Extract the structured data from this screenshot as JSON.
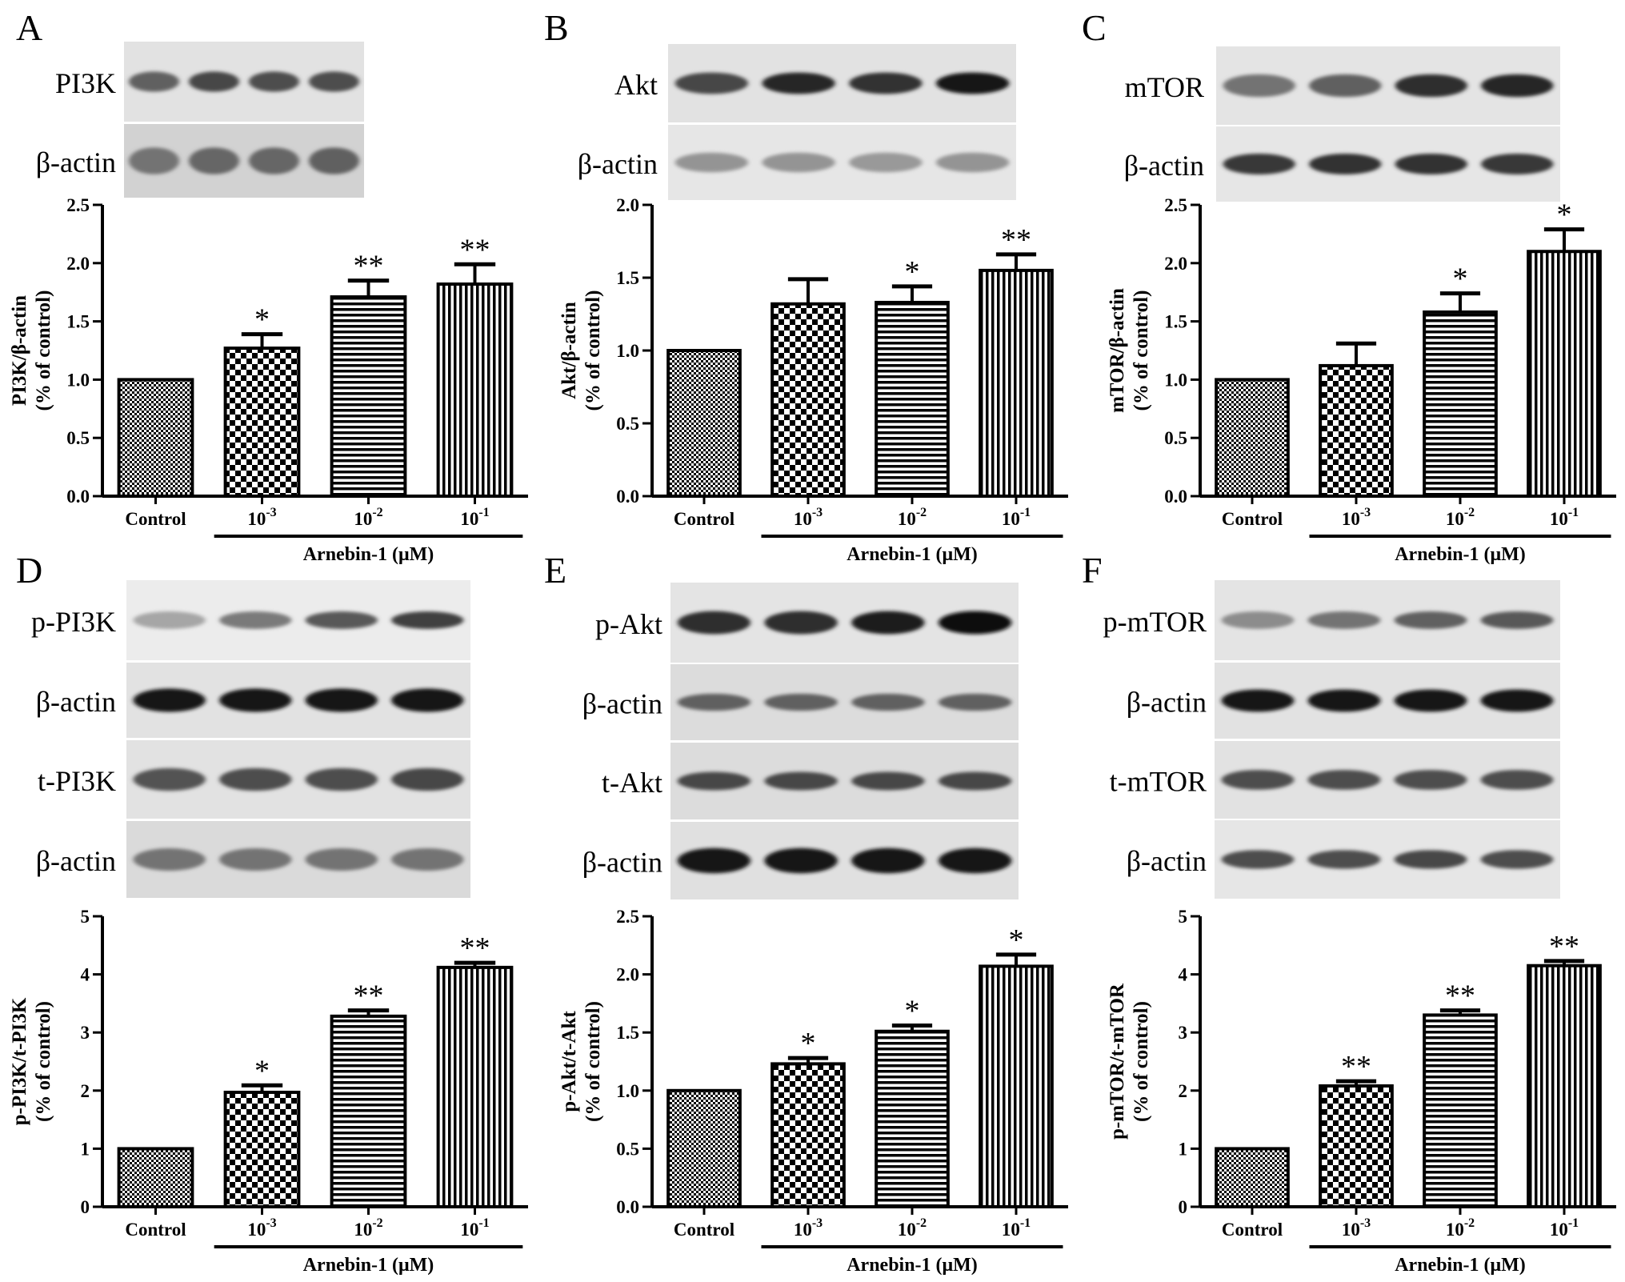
{
  "figure": {
    "panels": [
      {
        "letter": "A",
        "blots": [
          {
            "label": "PI3K",
            "intensity": [
              0.62,
              0.72,
              0.7,
              0.7
            ],
            "thickness": 0.45,
            "bg": "#e2e2e2"
          },
          {
            "label": "β-actin",
            "intensity": [
              0.55,
              0.6,
              0.6,
              0.62
            ],
            "thickness": 0.75,
            "bg": "#d2d2d2"
          }
        ]
      },
      {
        "letter": "B",
        "blots": [
          {
            "label": "Akt",
            "intensity": [
              0.72,
              0.85,
              0.8,
              0.92
            ],
            "thickness": 0.5,
            "bg": "#e2e2e2"
          },
          {
            "label": "β-actin",
            "intensity": [
              0.42,
              0.42,
              0.4,
              0.42
            ],
            "thickness": 0.45,
            "bg": "#e6e6e6"
          }
        ]
      },
      {
        "letter": "C",
        "blots": [
          {
            "label": "mTOR",
            "intensity": [
              0.55,
              0.62,
              0.82,
              0.85
            ],
            "thickness": 0.55,
            "bg": "#e4e4e4"
          },
          {
            "label": "β-actin",
            "intensity": [
              0.78,
              0.8,
              0.8,
              0.78
            ],
            "thickness": 0.5,
            "bg": "#e6e6e6"
          }
        ]
      },
      {
        "letter": "D",
        "blots": [
          {
            "label": "p-PI3K",
            "intensity": [
              0.35,
              0.52,
              0.65,
              0.75
            ],
            "thickness": 0.35,
            "bg": "#ececec"
          },
          {
            "label": "β-actin",
            "intensity": [
              0.92,
              0.92,
              0.92,
              0.92
            ],
            "thickness": 0.6,
            "bg": "#e2e2e2"
          },
          {
            "label": "t-PI3K",
            "intensity": [
              0.68,
              0.7,
              0.7,
              0.72
            ],
            "thickness": 0.55,
            "bg": "#e2e2e2"
          },
          {
            "label": "β-actin",
            "intensity": [
              0.55,
              0.55,
              0.55,
              0.55
            ],
            "thickness": 0.55,
            "bg": "#dadada"
          }
        ]
      },
      {
        "letter": "E",
        "blots": [
          {
            "label": "p-Akt",
            "intensity": [
              0.82,
              0.82,
              0.88,
              0.95
            ],
            "thickness": 0.55,
            "bg": "#e4e4e4"
          },
          {
            "label": "β-actin",
            "intensity": [
              0.62,
              0.62,
              0.62,
              0.62
            ],
            "thickness": 0.35,
            "bg": "#dcdcdc"
          },
          {
            "label": "t-Akt",
            "intensity": [
              0.72,
              0.72,
              0.72,
              0.72
            ],
            "thickness": 0.4,
            "bg": "#dcdcdc"
          },
          {
            "label": "β-actin",
            "intensity": [
              0.92,
              0.92,
              0.92,
              0.92
            ],
            "thickness": 0.65,
            "bg": "#e0e0e0"
          }
        ]
      },
      {
        "letter": "F",
        "blots": [
          {
            "label": "p-mTOR",
            "intensity": [
              0.45,
              0.55,
              0.62,
              0.65
            ],
            "thickness": 0.35,
            "bg": "#e4e4e4"
          },
          {
            "label": "β-actin",
            "intensity": [
              0.9,
              0.9,
              0.9,
              0.9
            ],
            "thickness": 0.55,
            "bg": "#e2e2e2"
          },
          {
            "label": "t-mTOR",
            "intensity": [
              0.7,
              0.7,
              0.7,
              0.7
            ],
            "thickness": 0.45,
            "bg": "#e2e2e2"
          },
          {
            "label": "β-actin",
            "intensity": [
              0.7,
              0.7,
              0.72,
              0.7
            ],
            "thickness": 0.4,
            "bg": "#e6e6e6"
          }
        ]
      }
    ]
  },
  "chart_data": [
    {
      "panel": "A",
      "type": "bar",
      "categories": [
        "Control",
        "10",
        "10",
        "10"
      ],
      "category_exponents": [
        "",
        "-3",
        "-2",
        "-1"
      ],
      "values": [
        1.0,
        1.27,
        1.71,
        1.82
      ],
      "errors": [
        0.0,
        0.12,
        0.14,
        0.17
      ],
      "significance": [
        "",
        "*",
        "**",
        "**"
      ],
      "patterns": [
        "fine-check",
        "checker",
        "hstripe",
        "vstripe"
      ],
      "ylabel_line1": "PI3K/β-actin",
      "ylabel_line2": "(% of control)",
      "xgroup_label": "Arnebin-1 (μM)",
      "ylim": [
        0,
        2.5
      ],
      "yticks": [
        "0.0",
        "0.5",
        "1.0",
        "1.5",
        "2.0",
        "2.5"
      ],
      "grid": false
    },
    {
      "panel": "B",
      "type": "bar",
      "categories": [
        "Control",
        "10",
        "10",
        "10"
      ],
      "category_exponents": [
        "",
        "-3",
        "-2",
        "-1"
      ],
      "values": [
        1.0,
        1.32,
        1.33,
        1.55
      ],
      "errors": [
        0.0,
        0.17,
        0.11,
        0.11
      ],
      "significance": [
        "",
        "",
        "*",
        "**"
      ],
      "patterns": [
        "fine-check",
        "checker",
        "hstripe",
        "vstripe"
      ],
      "ylabel_line1": "Akt/β-actin",
      "ylabel_line2": "(% of control)",
      "xgroup_label": "Arnebin-1 (μM)",
      "ylim": [
        0,
        2.0
      ],
      "yticks": [
        "0.0",
        "0.5",
        "1.0",
        "1.5",
        "2.0"
      ],
      "grid": false
    },
    {
      "panel": "C",
      "type": "bar",
      "categories": [
        "Control",
        "10",
        "10",
        "10"
      ],
      "category_exponents": [
        "",
        "-3",
        "-2",
        "-1"
      ],
      "values": [
        1.0,
        1.12,
        1.58,
        2.1
      ],
      "errors": [
        0.0,
        0.19,
        0.16,
        0.19
      ],
      "significance": [
        "",
        "",
        "*",
        "*"
      ],
      "patterns": [
        "fine-check",
        "checker",
        "hstripe",
        "vstripe"
      ],
      "ylabel_line1": "mTOR/β-actin",
      "ylabel_line2": "(% of control)",
      "xgroup_label": "Arnebin-1 (μM)",
      "ylim": [
        0,
        2.5
      ],
      "yticks": [
        "0.0",
        "0.5",
        "1.0",
        "1.5",
        "2.0",
        "2.5"
      ],
      "grid": false
    },
    {
      "panel": "D",
      "type": "bar",
      "categories": [
        "Control",
        "10",
        "10",
        "10"
      ],
      "category_exponents": [
        "",
        "-3",
        "-2",
        "-1"
      ],
      "values": [
        1.0,
        1.97,
        3.28,
        4.12
      ],
      "errors": [
        0.0,
        0.12,
        0.1,
        0.08
      ],
      "significance": [
        "",
        "*",
        "**",
        "**"
      ],
      "patterns": [
        "fine-check",
        "checker",
        "hstripe",
        "vstripe"
      ],
      "ylabel_line1": "p-PI3K/t-PI3K",
      "ylabel_line2": "(% of control)",
      "xgroup_label": "Arnebin-1 (μM)",
      "ylim": [
        0,
        5
      ],
      "yticks": [
        "0",
        "1",
        "2",
        "3",
        "4",
        "5"
      ],
      "grid": false
    },
    {
      "panel": "E",
      "type": "bar",
      "categories": [
        "Control",
        "10",
        "10",
        "10"
      ],
      "category_exponents": [
        "",
        "-3",
        "-2",
        "-1"
      ],
      "values": [
        1.0,
        1.23,
        1.51,
        2.07
      ],
      "errors": [
        0.0,
        0.05,
        0.05,
        0.1
      ],
      "significance": [
        "",
        "*",
        "*",
        "*"
      ],
      "patterns": [
        "fine-check",
        "checker",
        "hstripe",
        "vstripe"
      ],
      "ylabel_line1": "p-Akt/t-Akt",
      "ylabel_line2": "(% of control)",
      "xgroup_label": "Arnebin-1 (μM)",
      "ylim": [
        0,
        2.5
      ],
      "yticks": [
        "0.0",
        "0.5",
        "1.0",
        "1.5",
        "2.0",
        "2.5"
      ],
      "grid": false
    },
    {
      "panel": "F",
      "type": "bar",
      "categories": [
        "Control",
        "10",
        "10",
        "10"
      ],
      "category_exponents": [
        "",
        "-3",
        "-2",
        "-1"
      ],
      "values": [
        1.0,
        2.08,
        3.3,
        4.15
      ],
      "errors": [
        0.0,
        0.08,
        0.08,
        0.08
      ],
      "significance": [
        "",
        "**",
        "**",
        "**"
      ],
      "patterns": [
        "fine-check",
        "checker",
        "hstripe",
        "vstripe"
      ],
      "ylabel_line1": "p-mTOR/t-mTOR",
      "ylabel_line2": "(% of control)",
      "xgroup_label": "Arnebin-1 (μM)",
      "ylim": [
        0,
        5
      ],
      "yticks": [
        "0",
        "1",
        "2",
        "3",
        "4",
        "5"
      ],
      "grid": false
    }
  ]
}
